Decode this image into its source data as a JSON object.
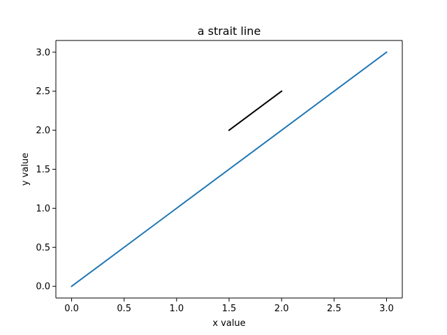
{
  "chart_data": {
    "type": "line",
    "title": "a strait line",
    "xlabel": "x value",
    "ylabel": "y value",
    "xlim": [
      -0.15,
      3.15
    ],
    "ylim": [
      -0.15,
      3.15
    ],
    "xticks": [
      0.0,
      0.5,
      1.0,
      1.5,
      2.0,
      2.5,
      3.0
    ],
    "yticks": [
      0.0,
      0.5,
      1.0,
      1.5,
      2.0,
      2.5,
      3.0
    ],
    "xtick_labels": [
      "0.0",
      "0.5",
      "1.0",
      "1.5",
      "2.0",
      "2.5",
      "3.0"
    ],
    "ytick_labels": [
      "0.0",
      "0.5",
      "1.0",
      "1.5",
      "2.0",
      "2.5",
      "3.0"
    ],
    "grid": false,
    "series": [
      {
        "x": [
          0,
          3
        ],
        "y": [
          0,
          3
        ],
        "color": "#1f77b4"
      },
      {
        "x": [
          1.5,
          2.0
        ],
        "y": [
          2.0,
          2.5
        ],
        "color": "#000000"
      }
    ]
  }
}
